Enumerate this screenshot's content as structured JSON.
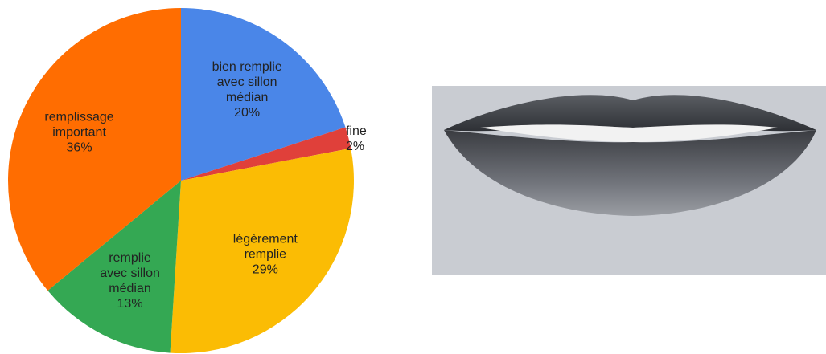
{
  "chart_data": {
    "type": "pie",
    "categories": [
      "bien remplie\navec sillon\nmédian",
      "fine",
      "légèrement\nremplie",
      "remplie\navec sillon\nmédian",
      "remplissage\nimportant"
    ],
    "values": [
      20,
      2,
      29,
      13,
      36
    ],
    "value_labels": [
      "20%",
      "2%",
      "29%",
      "13%",
      "36%"
    ],
    "colors": [
      "#4a86e8",
      "#e0403a",
      "#fbbc04",
      "#34a853",
      "#ff6d01"
    ]
  }
}
